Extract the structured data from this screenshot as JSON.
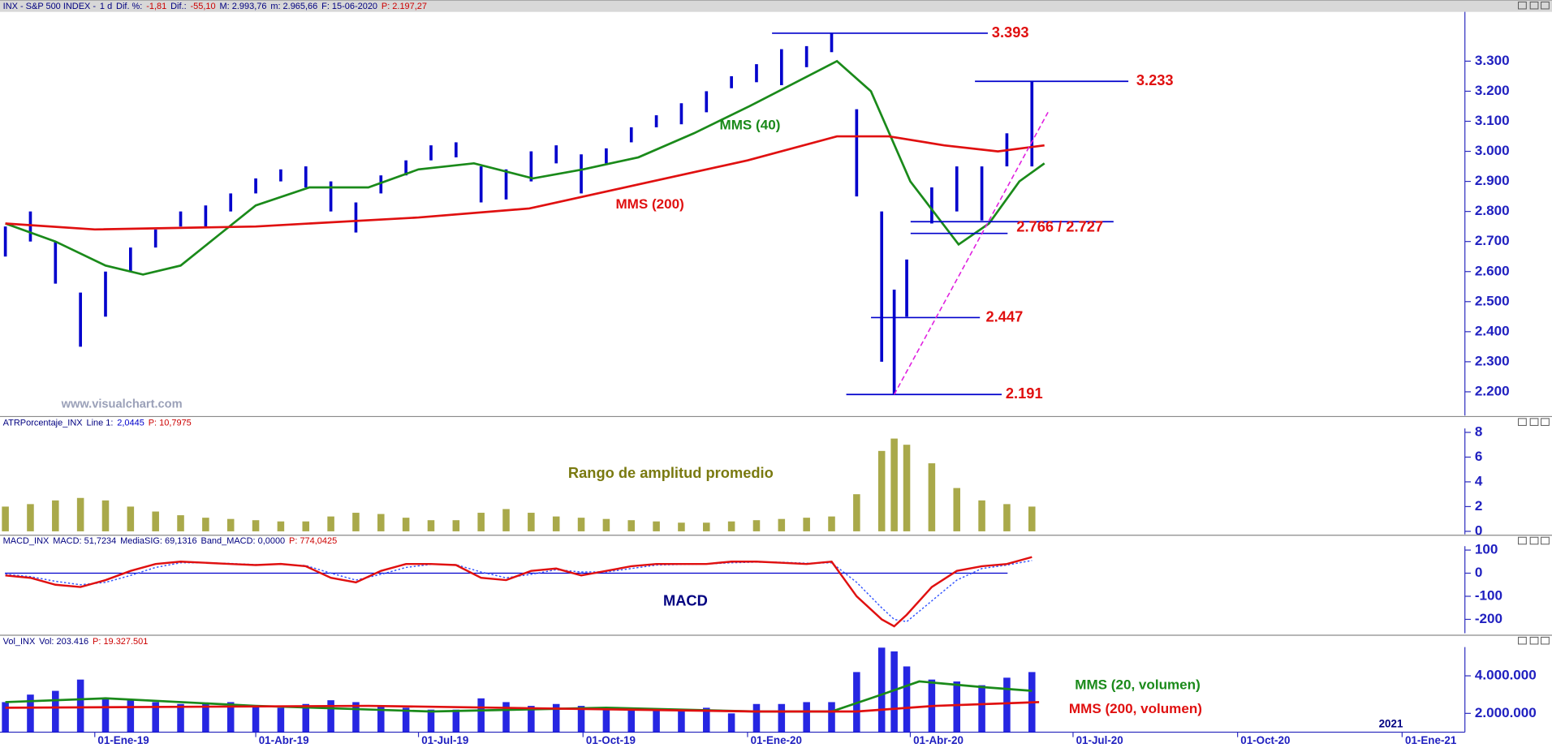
{
  "chart_data": [
    {
      "type": "range",
      "header": [
        {
          "text": "INX - S&P 500 INDEX -",
          "color": "#000080"
        },
        {
          "text": "1 d",
          "color": "#000080"
        },
        {
          "text": "Dif. %:",
          "color": "#000080"
        },
        {
          "text": "-1,81",
          "color": "#cc0000"
        },
        {
          "text": "Dif.:",
          "color": "#000080"
        },
        {
          "text": "-55,10",
          "color": "#cc0000"
        },
        {
          "text": "M: 2.993,76",
          "color": "#000080"
        },
        {
          "text": "m: 2.965,66",
          "color": "#000080"
        },
        {
          "text": "F: 15-06-2020",
          "color": "#000080"
        },
        {
          "text": "P: 2.197,27",
          "color": "#cc0000"
        }
      ],
      "color": "#0000cc",
      "x": [
        "2018-11-12",
        "2018-11-26",
        "2018-12-10",
        "2018-12-24",
        "2019-01-07",
        "2019-01-21",
        "2019-02-04",
        "2019-02-18",
        "2019-03-04",
        "2019-03-18",
        "2019-04-01",
        "2019-04-15",
        "2019-04-29",
        "2019-05-13",
        "2019-05-27",
        "2019-06-10",
        "2019-06-24",
        "2019-07-08",
        "2019-07-22",
        "2019-08-05",
        "2019-08-19",
        "2019-09-02",
        "2019-09-16",
        "2019-09-30",
        "2019-10-14",
        "2019-10-28",
        "2019-11-11",
        "2019-11-25",
        "2019-12-09",
        "2019-12-23",
        "2020-01-06",
        "2020-01-20",
        "2020-02-03",
        "2020-02-17",
        "2020-03-02",
        "2020-03-16",
        "2020-03-23",
        "2020-03-30",
        "2020-04-13",
        "2020-04-27",
        "2020-05-11",
        "2020-05-25",
        "2020-06-08"
      ],
      "highs": [
        2750,
        2800,
        2700,
        2530,
        2600,
        2680,
        2740,
        2800,
        2820,
        2860,
        2910,
        2940,
        2950,
        2900,
        2830,
        2920,
        2970,
        3020,
        3030,
        2950,
        2940,
        3000,
        3020,
        2990,
        3010,
        3080,
        3120,
        3160,
        3200,
        3250,
        3290,
        3340,
        3350,
        3393,
        3140,
        2800,
        2540,
        2640,
        2880,
        2950,
        2950,
        3060,
        3233
      ],
      "lows": [
        2650,
        2700,
        2560,
        2350,
        2450,
        2600,
        2680,
        2750,
        2750,
        2800,
        2860,
        2900,
        2880,
        2800,
        2730,
        2860,
        2920,
        2970,
        2980,
        2830,
        2840,
        2900,
        2960,
        2860,
        2960,
        3030,
        3080,
        3090,
        3130,
        3210,
        3230,
        3220,
        3280,
        3330,
        2850,
        2300,
        2191,
        2450,
        2760,
        2800,
        2770,
        2950,
        2950
      ],
      "lines": [
        {
          "label": "MMS (40)",
          "color": "#1a8a1a",
          "x": [
            "2018-11-12",
            "2018-12-10",
            "2019-01-07",
            "2019-01-28",
            "2019-02-18",
            "2019-03-11",
            "2019-04-01",
            "2019-05-01",
            "2019-06-03",
            "2019-07-01",
            "2019-08-01",
            "2019-09-03",
            "2019-10-01",
            "2019-11-01",
            "2019-12-02",
            "2020-01-02",
            "2020-02-20",
            "2020-03-10",
            "2020-04-01",
            "2020-04-28",
            "2020-05-15",
            "2020-06-01",
            "2020-06-15"
          ],
          "values": [
            2760,
            2700,
            2620,
            2590,
            2620,
            2720,
            2820,
            2880,
            2880,
            2940,
            2960,
            2910,
            2940,
            2980,
            3060,
            3150,
            3300,
            3200,
            2900,
            2690,
            2760,
            2900,
            2960
          ]
        },
        {
          "label": "MMS (200)",
          "color": "#e01010",
          "x": [
            "2018-11-12",
            "2019-01-01",
            "2019-04-01",
            "2019-07-01",
            "2019-09-01",
            "2019-11-01",
            "2020-01-01",
            "2020-02-20",
            "2020-03-20",
            "2020-04-20",
            "2020-05-20",
            "2020-06-15"
          ],
          "values": [
            2760,
            2740,
            2750,
            2780,
            2810,
            2890,
            2970,
            3050,
            3050,
            3020,
            3000,
            3020
          ]
        }
      ],
      "levels": [
        {
          "label": "3.393",
          "values": [
            3393
          ]
        },
        {
          "label": "3.233",
          "values": [
            3233
          ]
        },
        {
          "label": "2.766 / 2.727",
          "values": [
            2766,
            2727
          ]
        },
        {
          "label": "2.447",
          "values": [
            2447
          ]
        },
        {
          "label": "2.191",
          "values": [
            2191
          ]
        }
      ],
      "trendline": {
        "color": "#e020e0",
        "x": [
          "2020-03-23",
          "2020-06-17"
        ],
        "values": [
          2191,
          3130
        ]
      },
      "annotations": [
        {
          "text": "www.visualchart.com",
          "color": "#9aa0b8"
        }
      ],
      "xlim": [
        "2018-11-09",
        "2021-02-04"
      ],
      "ylim": [
        2121,
        3464
      ],
      "yticks": [
        {
          "value": 2200,
          "label": "2.200"
        },
        {
          "value": 2300,
          "label": "2.300"
        },
        {
          "value": 2400,
          "label": "2.400"
        },
        {
          "value": 2500,
          "label": "2.500"
        },
        {
          "value": 2600,
          "label": "2.600"
        },
        {
          "value": 2700,
          "label": "2.700"
        },
        {
          "value": 2800,
          "label": "2.800"
        },
        {
          "value": 2900,
          "label": "2.900"
        },
        {
          "value": 3000,
          "label": "3.000"
        },
        {
          "value": 3100,
          "label": "3.100"
        },
        {
          "value": 3200,
          "label": "3.200"
        },
        {
          "value": 3300,
          "label": "3.300"
        }
      ]
    },
    {
      "type": "bar",
      "header": [
        {
          "text": "ATRPorcentaje_INX",
          "color": "#000080"
        },
        {
          "text": "Line 1:",
          "color": "#000080"
        },
        {
          "text": "2,0445",
          "color": "#0000cc"
        },
        {
          "text": "P: 10,7975",
          "color": "#cc0000"
        }
      ],
      "color": "#9a9a2a",
      "x": [
        "2018-11-12",
        "2018-11-26",
        "2018-12-10",
        "2018-12-24",
        "2019-01-07",
        "2019-01-21",
        "2019-02-04",
        "2019-02-18",
        "2019-03-04",
        "2019-03-18",
        "2019-04-01",
        "2019-04-15",
        "2019-04-29",
        "2019-05-13",
        "2019-05-27",
        "2019-06-10",
        "2019-06-24",
        "2019-07-08",
        "2019-07-22",
        "2019-08-05",
        "2019-08-19",
        "2019-09-02",
        "2019-09-16",
        "2019-09-30",
        "2019-10-14",
        "2019-10-28",
        "2019-11-11",
        "2019-11-25",
        "2019-12-09",
        "2019-12-23",
        "2020-01-06",
        "2020-01-20",
        "2020-02-03",
        "2020-02-17",
        "2020-03-02",
        "2020-03-16",
        "2020-03-23",
        "2020-03-30",
        "2020-04-13",
        "2020-04-27",
        "2020-05-11",
        "2020-05-25",
        "2020-06-08"
      ],
      "values": [
        2.0,
        2.2,
        2.5,
        2.7,
        2.5,
        2.0,
        1.6,
        1.3,
        1.1,
        1.0,
        0.9,
        0.8,
        0.8,
        1.2,
        1.5,
        1.4,
        1.1,
        0.9,
        0.9,
        1.5,
        1.8,
        1.5,
        1.2,
        1.1,
        1.0,
        0.9,
        0.8,
        0.7,
        0.7,
        0.8,
        0.9,
        1.0,
        1.1,
        1.2,
        3.0,
        6.5,
        7.5,
        7.0,
        5.5,
        3.5,
        2.5,
        2.2,
        2.0
      ],
      "annotations": [
        {
          "text": "Rango de amplitud promedio",
          "color": "#7a7a10"
        }
      ],
      "xlim": [
        "2018-11-09",
        "2021-02-04"
      ],
      "ylim": [
        -0.24,
        8.32
      ],
      "yticks": [
        0,
        2,
        4,
        6,
        8
      ]
    },
    {
      "type": "line",
      "header": [
        {
          "text": "MACD_INX",
          "color": "#000080"
        },
        {
          "text": "MACD: 51,7234",
          "color": "#000080"
        },
        {
          "text": "MediaSIG: 69,1316",
          "color": "#000080"
        },
        {
          "text": "Band_MACD: 0,0000",
          "color": "#000080"
        },
        {
          "text": "P: 774,0425",
          "color": "#cc0000"
        }
      ],
      "x": [
        "2018-11-12",
        "2018-11-26",
        "2018-12-10",
        "2018-12-24",
        "2019-01-07",
        "2019-01-21",
        "2019-02-04",
        "2019-02-18",
        "2019-03-04",
        "2019-03-18",
        "2019-04-01",
        "2019-04-15",
        "2019-04-29",
        "2019-05-13",
        "2019-05-27",
        "2019-06-10",
        "2019-06-24",
        "2019-07-08",
        "2019-07-22",
        "2019-08-05",
        "2019-08-19",
        "2019-09-02",
        "2019-09-16",
        "2019-09-30",
        "2019-10-14",
        "2019-10-28",
        "2019-11-11",
        "2019-11-25",
        "2019-12-09",
        "2019-12-23",
        "2020-01-06",
        "2020-01-20",
        "2020-02-03",
        "2020-02-17",
        "2020-03-02",
        "2020-03-16",
        "2020-03-23",
        "2020-03-30",
        "2020-04-13",
        "2020-04-27",
        "2020-05-11",
        "2020-05-25",
        "2020-06-08"
      ],
      "series": [
        {
          "color": "#3355ff",
          "style": "dotted",
          "values": [
            -5,
            -15,
            -35,
            -50,
            -40,
            -10,
            25,
            45,
            45,
            42,
            37,
            38,
            33,
            0,
            -30,
            -5,
            25,
            38,
            37,
            5,
            -20,
            -5,
            15,
            5,
            5,
            20,
            35,
            38,
            40,
            45,
            48,
            47,
            43,
            45,
            -40,
            -150,
            -200,
            -210,
            -120,
            -30,
            20,
            35,
            55
          ]
        },
        {
          "color": "#e01010",
          "style": "solid",
          "values": [
            -10,
            -20,
            -50,
            -60,
            -30,
            10,
            40,
            50,
            45,
            40,
            35,
            40,
            30,
            -20,
            -40,
            10,
            40,
            40,
            35,
            -20,
            -30,
            10,
            20,
            -10,
            10,
            30,
            40,
            40,
            40,
            50,
            50,
            45,
            40,
            50,
            -100,
            -200,
            -230,
            -180,
            -60,
            10,
            30,
            40,
            70
          ]
        }
      ],
      "band": 0,
      "band_color": "#0000cc",
      "annotations": [
        {
          "text": "MACD",
          "color": "#000080"
        }
      ],
      "xlim": [
        "2018-11-09",
        "2021-02-04"
      ],
      "ylim": [
        -260,
        117
      ],
      "yticks": [
        -200,
        -100,
        0,
        100
      ]
    },
    {
      "type": "bar",
      "header": [
        {
          "text": "Vol_INX",
          "color": "#000080"
        },
        {
          "text": "Vol: 203.416",
          "color": "#000080"
        },
        {
          "text": "P: 19.327.501",
          "color": "#cc0000"
        }
      ],
      "color": "#0000dd",
      "x": [
        "2018-11-12",
        "2018-11-26",
        "2018-12-10",
        "2018-12-24",
        "2019-01-07",
        "2019-01-21",
        "2019-02-04",
        "2019-02-18",
        "2019-03-04",
        "2019-03-18",
        "2019-04-01",
        "2019-04-15",
        "2019-04-29",
        "2019-05-13",
        "2019-05-27",
        "2019-06-10",
        "2019-06-24",
        "2019-07-08",
        "2019-07-22",
        "2019-08-05",
        "2019-08-19",
        "2019-09-02",
        "2019-09-16",
        "2019-09-30",
        "2019-10-14",
        "2019-10-28",
        "2019-11-11",
        "2019-11-25",
        "2019-12-09",
        "2019-12-23",
        "2020-01-06",
        "2020-01-20",
        "2020-02-03",
        "2020-02-17",
        "2020-03-02",
        "2020-03-16",
        "2020-03-23",
        "2020-03-30",
        "2020-04-13",
        "2020-04-27",
        "2020-05-11",
        "2020-05-25",
        "2020-06-08"
      ],
      "values": [
        2600000,
        3000000,
        3200000,
        3800000,
        2800000,
        2700000,
        2600000,
        2500000,
        2500000,
        2600000,
        2400000,
        2300000,
        2500000,
        2700000,
        2600000,
        2400000,
        2300000,
        2200000,
        2200000,
        2800000,
        2600000,
        2400000,
        2500000,
        2400000,
        2300000,
        2300000,
        2200000,
        2200000,
        2300000,
        2000000,
        2500000,
        2500000,
        2600000,
        2600000,
        4200000,
        5500000,
        5300000,
        4500000,
        3800000,
        3700000,
        3500000,
        3900000,
        4200000
      ],
      "lines": [
        {
          "label": "MMS (20, volumen)",
          "color": "#1a8a1a",
          "x": [
            "2018-11-12",
            "2019-01-07",
            "2019-04-01",
            "2019-07-08",
            "2019-10-14",
            "2020-01-06",
            "2020-02-17",
            "2020-03-16",
            "2020-04-06",
            "2020-05-11",
            "2020-06-08"
          ],
          "values": [
            2600000,
            2800000,
            2400000,
            2100000,
            2300000,
            2100000,
            2100000,
            3000000,
            3700000,
            3400000,
            3200000
          ]
        },
        {
          "label": "MMS (200, volumen)",
          "color": "#e01010",
          "x": [
            "2018-11-12",
            "2019-06-03",
            "2020-01-06",
            "2020-03-02",
            "2020-04-15",
            "2020-06-12"
          ],
          "values": [
            2300000,
            2400000,
            2100000,
            2100000,
            2400000,
            2600000
          ]
        }
      ],
      "annotations": [
        {
          "text": "2021",
          "color": "#000080"
        }
      ],
      "xlim": [
        "2018-11-09",
        "2021-02-04"
      ],
      "xticks": [
        {
          "value": "2019-01-01",
          "label": "01-Ene-19"
        },
        {
          "value": "2019-04-01",
          "label": "01-Abr-19"
        },
        {
          "value": "2019-07-01",
          "label": "01-Jul-19"
        },
        {
          "value": "2019-10-01",
          "label": "01-Oct-19"
        },
        {
          "value": "2020-01-01",
          "label": "01-Ene-20"
        },
        {
          "value": "2020-04-01",
          "label": "01-Abr-20"
        },
        {
          "value": "2020-07-01",
          "label": "01-Jul-20"
        },
        {
          "value": "2020-10-01",
          "label": "01-Oct-20"
        },
        {
          "value": "2021-01-01",
          "label": "01-Ene-21"
        }
      ],
      "ylim": [
        1000000,
        5530000
      ],
      "yticks": [
        {
          "value": 2000000,
          "label": "2.000.000"
        },
        {
          "value": 4000000,
          "label": "4.000.000"
        }
      ]
    }
  ]
}
